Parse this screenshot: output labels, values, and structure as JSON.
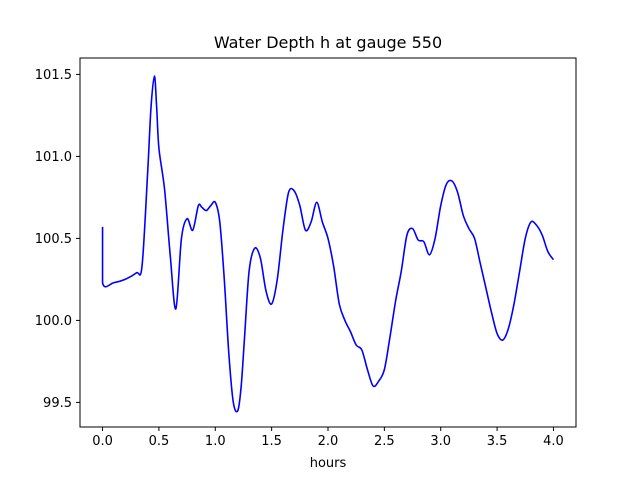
{
  "chart_data": {
    "type": "line",
    "title": "Water Depth h at gauge 550",
    "xlabel": "hours",
    "ylabel": "",
    "xlim": [
      -0.2,
      4.2
    ],
    "ylim": [
      99.35,
      101.6
    ],
    "xticks": [
      0.0,
      0.5,
      1.0,
      1.5,
      2.0,
      2.5,
      3.0,
      3.5,
      4.0
    ],
    "xtick_labels": [
      "0.0",
      "0.5",
      "1.0",
      "1.5",
      "2.0",
      "2.5",
      "3.0",
      "3.5",
      "4.0"
    ],
    "yticks": [
      99.5,
      100.0,
      100.5,
      101.0,
      101.5
    ],
    "ytick_labels": [
      "99.5",
      "100.0",
      "100.5",
      "101.0",
      "101.5"
    ],
    "grid": false,
    "series": [
      {
        "color": "#0000ff",
        "x": [
          0.0,
          0.0,
          0.1,
          0.2,
          0.3,
          0.35,
          0.4,
          0.43,
          0.46,
          0.48,
          0.5,
          0.55,
          0.6,
          0.65,
          0.7,
          0.75,
          0.8,
          0.85,
          0.88,
          0.92,
          0.96,
          1.0,
          1.04,
          1.08,
          1.12,
          1.16,
          1.2,
          1.23,
          1.26,
          1.3,
          1.35,
          1.4,
          1.45,
          1.5,
          1.55,
          1.6,
          1.65,
          1.7,
          1.75,
          1.8,
          1.85,
          1.9,
          1.95,
          2.0,
          2.05,
          2.1,
          2.15,
          2.2,
          2.25,
          2.3,
          2.35,
          2.4,
          2.45,
          2.5,
          2.55,
          2.6,
          2.65,
          2.7,
          2.75,
          2.8,
          2.85,
          2.9,
          2.95,
          3.0,
          3.05,
          3.1,
          3.15,
          3.2,
          3.25,
          3.3,
          3.35,
          3.4,
          3.45,
          3.5,
          3.55,
          3.6,
          3.65,
          3.7,
          3.75,
          3.8,
          3.85,
          3.9,
          3.95,
          4.0
        ],
        "y": [
          100.57,
          100.23,
          100.23,
          100.25,
          100.29,
          100.33,
          100.9,
          101.3,
          101.49,
          101.3,
          101.05,
          100.8,
          100.4,
          100.07,
          100.5,
          100.62,
          100.55,
          100.7,
          100.69,
          100.67,
          100.7,
          100.72,
          100.6,
          100.25,
          99.8,
          99.5,
          99.45,
          99.6,
          99.9,
          100.3,
          100.44,
          100.38,
          100.18,
          100.1,
          100.25,
          100.55,
          100.78,
          100.79,
          100.7,
          100.55,
          100.6,
          100.72,
          100.6,
          100.5,
          100.33,
          100.1,
          100.0,
          99.93,
          99.85,
          99.82,
          99.7,
          99.6,
          99.63,
          99.7,
          99.9,
          100.12,
          100.3,
          100.52,
          100.56,
          100.49,
          100.48,
          100.4,
          100.5,
          100.7,
          100.83,
          100.85,
          100.78,
          100.64,
          100.56,
          100.5,
          100.35,
          100.2,
          100.05,
          99.92,
          99.88,
          99.95,
          100.1,
          100.3,
          100.5,
          100.6,
          100.58,
          100.52,
          100.42,
          100.37
        ]
      }
    ]
  }
}
